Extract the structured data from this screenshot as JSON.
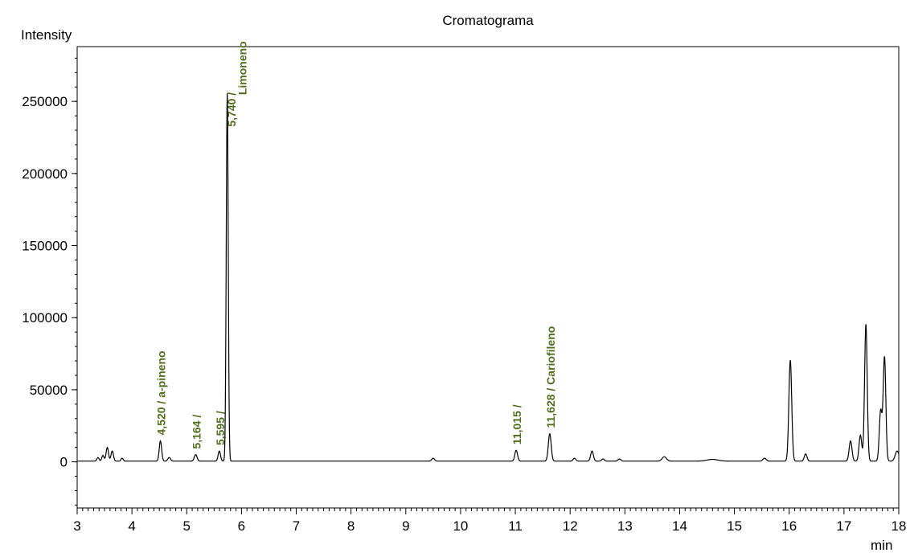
{
  "chart_data": {
    "type": "line",
    "title": "Cromatograma",
    "ylabel": "Intensity",
    "xlabel": "min",
    "xlim": [
      3,
      18
    ],
    "ylim": [
      -32000,
      288000
    ],
    "x_ticks": [
      3,
      4,
      5,
      6,
      7,
      8,
      9,
      10,
      11,
      12,
      13,
      14,
      15,
      16,
      17,
      18
    ],
    "y_ticks": [
      0,
      50000,
      100000,
      150000,
      200000,
      250000
    ],
    "grid": false,
    "legend": "none",
    "line_color": "#000000",
    "label_color": "#4f6f1a",
    "baseline": 500,
    "peaks": [
      {
        "x": 3.38,
        "y": 2500,
        "w": 0.02
      },
      {
        "x": 3.47,
        "y": 4000,
        "w": 0.02
      },
      {
        "x": 3.55,
        "y": 9500,
        "w": 0.022
      },
      {
        "x": 3.64,
        "y": 7000,
        "w": 0.022
      },
      {
        "x": 3.82,
        "y": 2000,
        "w": 0.02
      },
      {
        "x": 4.52,
        "y": 14000,
        "w": 0.022
      },
      {
        "x": 4.68,
        "y": 2500,
        "w": 0.025
      },
      {
        "x": 5.164,
        "y": 4500,
        "w": 0.025
      },
      {
        "x": 5.595,
        "y": 7000,
        "w": 0.022
      },
      {
        "x": 5.74,
        "y": 255000,
        "w": 0.018
      },
      {
        "x": 9.5,
        "y": 2000,
        "w": 0.025
      },
      {
        "x": 11.015,
        "y": 7500,
        "w": 0.025
      },
      {
        "x": 11.628,
        "y": 19000,
        "w": 0.026
      },
      {
        "x": 12.08,
        "y": 2000,
        "w": 0.025
      },
      {
        "x": 12.4,
        "y": 7000,
        "w": 0.025
      },
      {
        "x": 12.6,
        "y": 1500,
        "w": 0.025
      },
      {
        "x": 12.9,
        "y": 1500,
        "w": 0.025
      },
      {
        "x": 13.72,
        "y": 3000,
        "w": 0.04
      },
      {
        "x": 14.6,
        "y": 1200,
        "w": 0.1
      },
      {
        "x": 15.55,
        "y": 2000,
        "w": 0.03
      },
      {
        "x": 16.02,
        "y": 70000,
        "w": 0.026
      },
      {
        "x": 16.3,
        "y": 5000,
        "w": 0.025
      },
      {
        "x": 17.12,
        "y": 14000,
        "w": 0.026
      },
      {
        "x": 17.3,
        "y": 18000,
        "w": 0.025
      },
      {
        "x": 17.4,
        "y": 95000,
        "w": 0.024
      },
      {
        "x": 17.67,
        "y": 35000,
        "w": 0.025
      },
      {
        "x": 17.74,
        "y": 72000,
        "w": 0.024
      },
      {
        "x": 17.97,
        "y": 7000,
        "w": 0.035
      }
    ],
    "annotations": [
      {
        "text": "4,520 / a-pineno",
        "x": 4.52,
        "y": 14000,
        "big": false
      },
      {
        "text": "5,164 /",
        "x": 5.164,
        "y": 4500,
        "big": false
      },
      {
        "text": "5,595 /",
        "x": 5.595,
        "y": 7000,
        "big": false
      },
      {
        "text": "5,740 /",
        "x": 5.8,
        "y": 228000,
        "big": false
      },
      {
        "text": "Limoneno",
        "x": 6.0,
        "y": 250000,
        "big": true
      },
      {
        "text": "11,015 /",
        "x": 11.015,
        "y": 7500,
        "big": false
      },
      {
        "text": "11,628 / Cariofileno",
        "x": 11.628,
        "y": 19000,
        "big": false
      }
    ]
  }
}
